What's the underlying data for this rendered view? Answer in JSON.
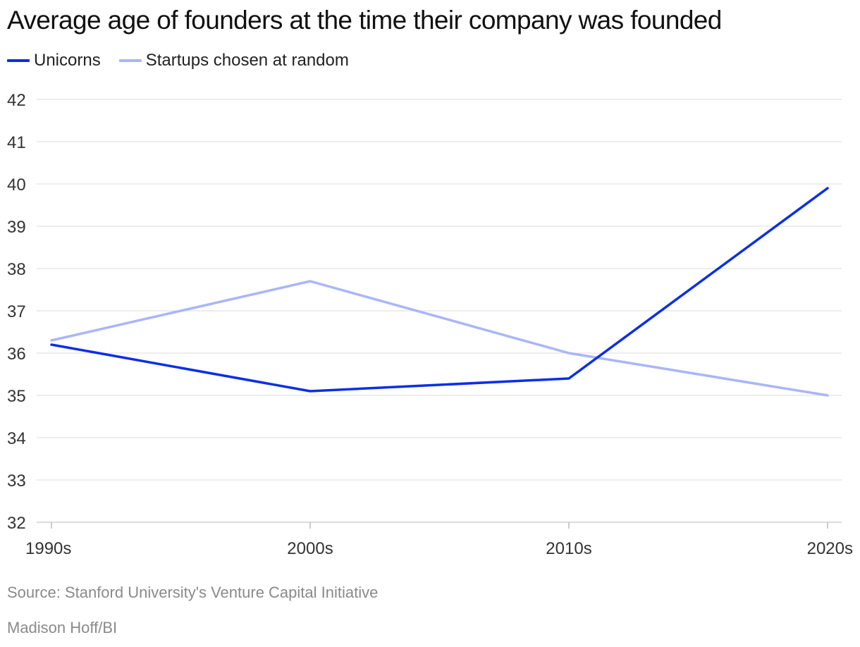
{
  "title": "Average age of founders at the time their company was founded",
  "source": "Source: Stanford University's Venture Capital Initiative",
  "credit": "Madison Hoff/BI",
  "chart_data": {
    "type": "line",
    "title": "Average age of founders at the time their company was founded",
    "categories": [
      "1990s",
      "2000s",
      "2010s",
      "2020s"
    ],
    "series": [
      {
        "name": "Unicorns",
        "color": "#0a2fe6",
        "values": [
          36.2,
          35.1,
          35.4,
          39.9
        ]
      },
      {
        "name": "Startups chosen at random",
        "color": "#a9b6f7",
        "values": [
          36.3,
          37.7,
          36.0,
          35.0
        ]
      }
    ],
    "ylim": [
      32,
      42
    ],
    "yticks": [
      "42",
      "41",
      "40",
      "39",
      "38",
      "37",
      "36",
      "35",
      "34",
      "33",
      "32"
    ],
    "grid": true,
    "legend_position": "top-left"
  }
}
